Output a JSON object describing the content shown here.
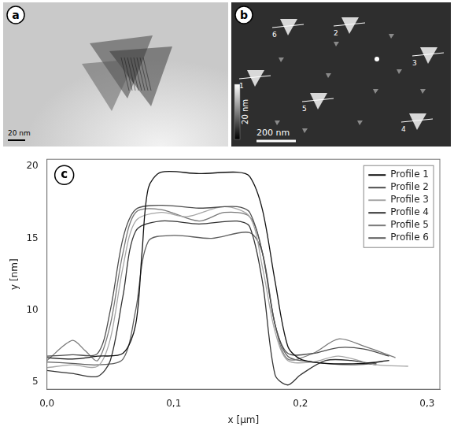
{
  "panels": {
    "a": {
      "letter": "a",
      "scale_bar": "20 nm"
    },
    "b": {
      "letter": "b",
      "colorbar_label": "20 nm",
      "scale_bar": "200 nm",
      "profile_labels": [
        "1",
        "2",
        "3",
        "4",
        "5",
        "6"
      ]
    }
  },
  "chart_data": {
    "letter": "c",
    "type": "line",
    "x_label": "x [µm]",
    "y_label": "y [nm]",
    "xlim": [
      0,
      0.31
    ],
    "xticks": [
      {
        "value": 0,
        "label": "0,0"
      },
      {
        "value": 0.1,
        "label": "0,1"
      },
      {
        "value": 0.2,
        "label": "0,2"
      },
      {
        "value": 0.3,
        "label": "0,3"
      }
    ],
    "ylim": [
      4.5,
      20.5
    ],
    "yticks": [
      5,
      10,
      15,
      20
    ],
    "grid": false,
    "legend": "upper right",
    "series": [
      {
        "name": "Profile 1",
        "color": "#111111",
        "x": [
          0,
          0.02,
          0.04,
          0.06,
          0.07,
          0.075,
          0.08,
          0.09,
          0.12,
          0.15,
          0.16,
          0.17,
          0.18,
          0.19,
          0.2,
          0.22,
          0.25,
          0.27
        ],
        "values": [
          6.7,
          6.6,
          6.8,
          7.0,
          9,
          14,
          18.5,
          19.6,
          19.5,
          19.6,
          19.3,
          17,
          12,
          7.5,
          6.6,
          6.3,
          6.3,
          6.5
        ]
      },
      {
        "name": "Profile 2",
        "color": "#4d4d4d",
        "x": [
          0,
          0.02,
          0.04,
          0.05,
          0.06,
          0.07,
          0.09,
          0.12,
          0.15,
          0.16,
          0.17,
          0.18,
          0.19,
          0.21,
          0.23,
          0.25,
          0.27
        ],
        "values": [
          6.8,
          6.9,
          7.0,
          10,
          15,
          17.0,
          17.3,
          17.1,
          17.2,
          16.8,
          14,
          9,
          7,
          7,
          7.4,
          7.3,
          6.8
        ]
      },
      {
        "name": "Profile 3",
        "color": "#a6a6a6",
        "x": [
          0,
          0.02,
          0.04,
          0.05,
          0.06,
          0.07,
          0.09,
          0.11,
          0.14,
          0.16,
          0.17,
          0.18,
          0.19,
          0.21,
          0.23,
          0.26,
          0.285
        ],
        "values": [
          6.0,
          6.2,
          6.1,
          8,
          13,
          16.2,
          16.8,
          16.5,
          17.2,
          16.5,
          13,
          8.5,
          6.5,
          6.4,
          6.8,
          6.2,
          6.1
        ]
      },
      {
        "name": "Profile 4",
        "color": "#333333",
        "x": [
          0,
          0.02,
          0.04,
          0.05,
          0.06,
          0.07,
          0.09,
          0.12,
          0.15,
          0.16,
          0.17,
          0.18,
          0.19,
          0.2,
          0.22,
          0.24,
          0.26
        ],
        "values": [
          5.8,
          5.6,
          5.4,
          6.5,
          11,
          15.5,
          16.2,
          16.0,
          16.2,
          15.8,
          12,
          5.5,
          4.8,
          5.5,
          6.5,
          6.5,
          6.2
        ]
      },
      {
        "name": "Profile 5",
        "color": "#7a7a7a",
        "x": [
          0,
          0.02,
          0.03,
          0.04,
          0.05,
          0.06,
          0.07,
          0.09,
          0.12,
          0.14,
          0.16,
          0.17,
          0.18,
          0.19,
          0.21,
          0.23,
          0.25,
          0.275
        ],
        "values": [
          6.5,
          7.9,
          7.2,
          6.5,
          9,
          14,
          16.8,
          17.0,
          16.2,
          16.8,
          16.5,
          14,
          9,
          6.6,
          7,
          8.0,
          7.5,
          6.7
        ]
      },
      {
        "name": "Profile 6",
        "color": "#5e5e5e",
        "x": [
          0,
          0.02,
          0.04,
          0.06,
          0.07,
          0.08,
          0.1,
          0.13,
          0.16,
          0.17,
          0.18,
          0.19,
          0.21,
          0.24,
          0.26
        ],
        "values": [
          6.4,
          6.3,
          6.2,
          6.6,
          10,
          14.8,
          15.2,
          15.0,
          15.4,
          14,
          9,
          6.8,
          6.4,
          6.2,
          6.3
        ]
      }
    ]
  }
}
